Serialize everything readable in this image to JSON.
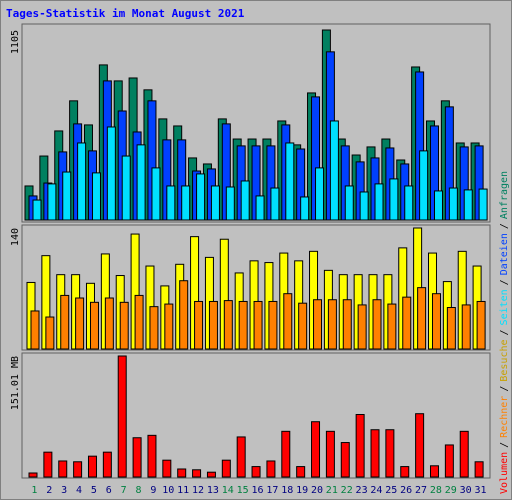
{
  "title": "Tages-Statistik im Monat August 2021",
  "legend_separator": "/",
  "chart_data": [
    {
      "type": "bar",
      "ylim": [
        0,
        1105
      ],
      "yticks": [
        1105
      ],
      "categories": [
        "1",
        "2",
        "3",
        "4",
        "5",
        "6",
        "7",
        "8",
        "9",
        "10",
        "11",
        "12",
        "13",
        "14",
        "15",
        "16",
        "17",
        "18",
        "19",
        "20",
        "21",
        "22",
        "23",
        "24",
        "25",
        "26",
        "27",
        "28",
        "29",
        "30",
        "31"
      ],
      "series": [
        {
          "name": "Anfragen",
          "color": "#008060",
          "values": [
            198,
            372,
            518,
            693,
            553,
            902,
            809,
            826,
            757,
            588,
            547,
            361,
            326,
            588,
            471,
            471,
            471,
            576,
            437,
            739,
            1105,
            471,
            378,
            425,
            471,
            349,
            890,
            576,
            693,
            448,
            448
          ]
        },
        {
          "name": "Dateien",
          "color": "#0040ff",
          "values": [
            140,
            215,
            396,
            559,
            402,
            809,
            634,
            512,
            693,
            466,
            466,
            285,
            297,
            559,
            431,
            431,
            431,
            553,
            413,
            716,
            978,
            431,
            338,
            361,
            419,
            326,
            861,
            547,
            658,
            425,
            431
          ]
        },
        {
          "name": "Seiten",
          "color": "#00e0ff",
          "values": [
            116,
            210,
            279,
            448,
            274,
            541,
            372,
            437,
            303,
            198,
            198,
            268,
            198,
            192,
            227,
            140,
            186,
            448,
            134,
            303,
            576,
            198,
            163,
            210,
            239,
            198,
            402,
            169,
            186,
            175,
            180
          ]
        }
      ]
    },
    {
      "type": "bar",
      "ylim": [
        0,
        140
      ],
      "yticks": [
        140
      ],
      "categories": [
        "1",
        "2",
        "3",
        "4",
        "5",
        "6",
        "7",
        "8",
        "9",
        "10",
        "11",
        "12",
        "13",
        "14",
        "15",
        "16",
        "17",
        "18",
        "19",
        "20",
        "21",
        "22",
        "23",
        "24",
        "25",
        "26",
        "27",
        "28",
        "29",
        "30",
        "31"
      ],
      "series": [
        {
          "name": "Besuche",
          "color": "#ffff00",
          "legend_color": "#c8a000",
          "values": [
            77,
            108,
            86,
            86,
            76,
            110,
            85,
            133,
            96,
            73,
            98,
            130,
            106,
            127,
            88,
            102,
            100,
            111,
            102,
            113,
            91,
            86,
            86,
            86,
            86,
            117,
            140,
            111,
            78,
            113,
            96
          ]
        },
        {
          "name": "Rechner",
          "color": "#ff8000",
          "values": [
            44,
            37,
            62,
            59,
            54,
            59,
            54,
            62,
            49,
            52,
            79,
            55,
            55,
            56,
            55,
            55,
            55,
            64,
            53,
            57,
            57,
            57,
            51,
            57,
            52,
            60,
            71,
            64,
            48,
            51,
            55
          ]
        }
      ]
    },
    {
      "type": "bar",
      "ylim": [
        0,
        151.01
      ],
      "yticks": [
        {
          "value": 151.01,
          "label": "151.01 MB"
        }
      ],
      "categories": [
        "1",
        "2",
        "3",
        "4",
        "5",
        "6",
        "7",
        "8",
        "9",
        "10",
        "11",
        "12",
        "13",
        "14",
        "15",
        "16",
        "17",
        "18",
        "19",
        "20",
        "21",
        "22",
        "23",
        "24",
        "25",
        "26",
        "27",
        "28",
        "29",
        "30",
        "31"
      ],
      "category_colors": [
        "#008040",
        "#000080",
        "#000080",
        "#000080",
        "#000080",
        "#000080",
        "#008040",
        "#008040",
        "#000080",
        "#000080",
        "#000080",
        "#000080",
        "#000080",
        "#008040",
        "#008040",
        "#000080",
        "#000080",
        "#000080",
        "#000080",
        "#000080",
        "#008040",
        "#008040",
        "#000080",
        "#000080",
        "#000080",
        "#000080",
        "#000080",
        "#008040",
        "#008040",
        "#000080",
        "#000080"
      ],
      "series": [
        {
          "name": "Volumen",
          "color": "#ff0000",
          "values": [
            5,
            31,
            20,
            19,
            26,
            31,
            151.01,
            49,
            52,
            21,
            10,
            9,
            6,
            21,
            50,
            13,
            20,
            57,
            13,
            69,
            57,
            43,
            78,
            59,
            59,
            13,
            79,
            14,
            40,
            57,
            19
          ]
        }
      ]
    }
  ]
}
